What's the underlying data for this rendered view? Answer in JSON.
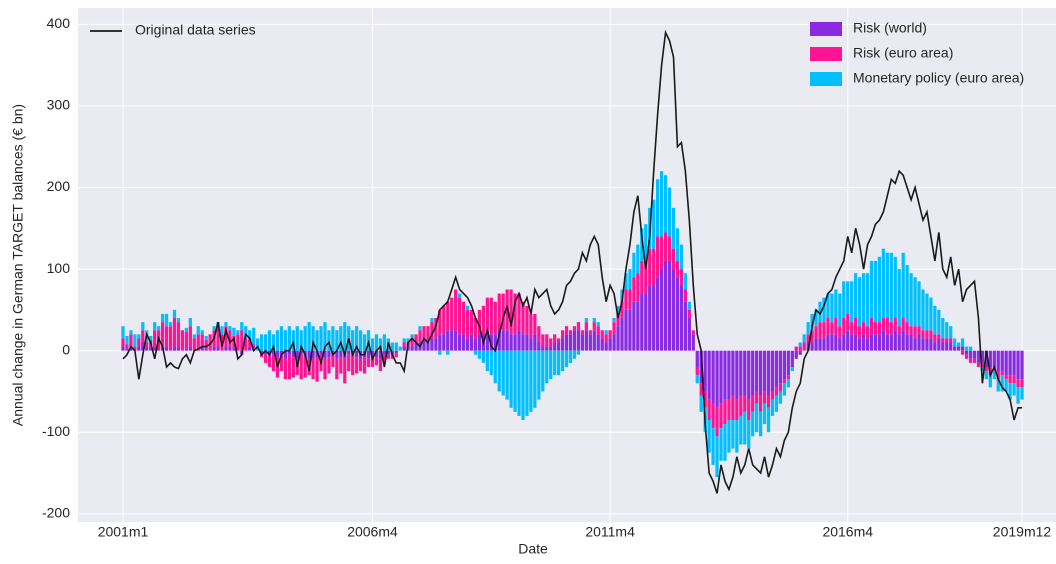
{
  "chart_data": {
    "type": "bar",
    "stacked": true,
    "x_label": "Date",
    "y_label": "Annual change in German TARGET balances (€ bn)",
    "categories": [
      "2001m1",
      null,
      null,
      null,
      null,
      null,
      null,
      null,
      null,
      null,
      null,
      null,
      null,
      null,
      null,
      null,
      null,
      null,
      null,
      null,
      null,
      null,
      null,
      null,
      null,
      null,
      null,
      null,
      null,
      null,
      null,
      null,
      null,
      null,
      null,
      null,
      null,
      null,
      null,
      null,
      null,
      null,
      null,
      null,
      null,
      null,
      null,
      null,
      null,
      null,
      null,
      null,
      null,
      null,
      null,
      null,
      null,
      null,
      null,
      null,
      null,
      null,
      null,
      "2006m4",
      null,
      null,
      null,
      null,
      null,
      null,
      null,
      null,
      null,
      null,
      null,
      null,
      null,
      null,
      null,
      null,
      null,
      null,
      null,
      null,
      null,
      null,
      null,
      null,
      null,
      null,
      null,
      null,
      null,
      null,
      null,
      null,
      null,
      null,
      null,
      null,
      null,
      null,
      null,
      null,
      null,
      null,
      null,
      null,
      null,
      null,
      null,
      null,
      null,
      null,
      null,
      null,
      null,
      null,
      null,
      null,
      null,
      null,
      null,
      "2011m4",
      null,
      null,
      null,
      null,
      null,
      null,
      null,
      null,
      null,
      null,
      null,
      null,
      null,
      null,
      null,
      null,
      null,
      null,
      null,
      null,
      null,
      null,
      null,
      null,
      null,
      null,
      null,
      null,
      null,
      null,
      null,
      null,
      null,
      null,
      null,
      null,
      null,
      null,
      null,
      null,
      null,
      null,
      null,
      null,
      null,
      null,
      null,
      null,
      null,
      null,
      null,
      null,
      null,
      null,
      null,
      null,
      null,
      null,
      null,
      "2016m4",
      null,
      null,
      null,
      null,
      null,
      null,
      null,
      null,
      null,
      null,
      null,
      null,
      null,
      null,
      null,
      null,
      null,
      null,
      null,
      null,
      null,
      null,
      null,
      null,
      null,
      null,
      null,
      null,
      null,
      null,
      null,
      null,
      null,
      null,
      null,
      null,
      null,
      null,
      null,
      null,
      null,
      null,
      null,
      "2019m12"
    ],
    "series": [
      {
        "name": "Risk (world)",
        "type": "bar",
        "color": "#8a2be2",
        "values": [
          5,
          3,
          5,
          0,
          5,
          10,
          5,
          3,
          5,
          0,
          5,
          5,
          0,
          5,
          5,
          0,
          3,
          5,
          0,
          0,
          5,
          3,
          0,
          5,
          5,
          0,
          5,
          5,
          3,
          0,
          -5,
          0,
          5,
          3,
          0,
          -3,
          -5,
          -5,
          -5,
          -8,
          -5,
          -10,
          -5,
          -8,
          -10,
          -5,
          -8,
          -10,
          -10,
          -8,
          -5,
          -10,
          -8,
          -5,
          -10,
          -8,
          -10,
          -5,
          -5,
          -8,
          -10,
          -8,
          -10,
          -5,
          -8,
          -10,
          -5,
          -5,
          -5,
          -3,
          0,
          5,
          5,
          5,
          10,
          10,
          15,
          10,
          15,
          15,
          20,
          20,
          25,
          25,
          25,
          20,
          20,
          15,
          20,
          15,
          20,
          20,
          25,
          20,
          20,
          25,
          25,
          25,
          20,
          20,
          25,
          20,
          20,
          15,
          20,
          10,
          5,
          5,
          5,
          10,
          10,
          15,
          20,
          20,
          25,
          25,
          20,
          25,
          20,
          25,
          20,
          15,
          10,
          15,
          20,
          30,
          40,
          50,
          50,
          60,
          60,
          70,
          70,
          80,
          80,
          90,
          100,
          110,
          110,
          100,
          90,
          80,
          60,
          40,
          20,
          -20,
          -40,
          -50,
          -60,
          -65,
          -70,
          -65,
          -60,
          -60,
          -55,
          -60,
          -55,
          -55,
          -60,
          -55,
          -50,
          -55,
          -50,
          -55,
          -50,
          -45,
          -40,
          -35,
          -30,
          -20,
          -10,
          -5,
          0,
          10,
          10,
          15,
          15,
          15,
          20,
          20,
          20,
          15,
          20,
          25,
          20,
          20,
          15,
          20,
          15,
          20,
          20,
          20,
          25,
          20,
          20,
          25,
          20,
          25,
          20,
          20,
          15,
          20,
          15,
          15,
          15,
          10,
          15,
          10,
          10,
          10,
          5,
          5,
          5,
          -5,
          -10,
          -10,
          -15,
          -15,
          -20,
          -20,
          -20,
          -25,
          -25,
          -30,
          -30,
          -30,
          -35,
          -35
        ]
      },
      {
        "name": "Risk (euro area)",
        "type": "bar",
        "color": "#ff1493",
        "values": [
          10,
          5,
          15,
          5,
          10,
          15,
          5,
          10,
          20,
          25,
          30,
          25,
          30,
          35,
          30,
          25,
          20,
          25,
          15,
          20,
          15,
          10,
          20,
          20,
          25,
          20,
          25,
          20,
          15,
          20,
          25,
          15,
          10,
          5,
          0,
          -5,
          -10,
          -15,
          -20,
          -25,
          -20,
          -25,
          -30,
          -25,
          -20,
          -30,
          -25,
          -20,
          -25,
          -30,
          -20,
          -25,
          -20,
          -15,
          -25,
          -20,
          -30,
          -20,
          -25,
          -20,
          -15,
          -20,
          -10,
          -15,
          -10,
          -15,
          -10,
          -5,
          -5,
          -5,
          0,
          5,
          5,
          10,
          10,
          15,
          15,
          20,
          20,
          25,
          30,
          35,
          35,
          40,
          50,
          45,
          40,
          35,
          30,
          25,
          30,
          35,
          40,
          45,
          40,
          45,
          45,
          50,
          55,
          50,
          45,
          40,
          35,
          30,
          25,
          20,
          15,
          15,
          10,
          10,
          5,
          10,
          10,
          5,
          5,
          10,
          5,
          10,
          5,
          10,
          10,
          10,
          10,
          10,
          15,
          15,
          20,
          25,
          25,
          30,
          35,
          40,
          40,
          45,
          45,
          50,
          40,
          35,
          30,
          25,
          20,
          20,
          15,
          10,
          5,
          -10,
          -15,
          -20,
          -25,
          -30,
          -35,
          -30,
          -30,
          -25,
          -30,
          -25,
          -25,
          -20,
          -25,
          -20,
          -15,
          -20,
          -15,
          -15,
          -10,
          -10,
          -10,
          -5,
          -5,
          0,
          5,
          5,
          10,
          10,
          15,
          15,
          20,
          20,
          20,
          15,
          20,
          15,
          20,
          20,
          15,
          20,
          15,
          15,
          15,
          20,
          15,
          15,
          15,
          20,
          15,
          15,
          10,
          15,
          15,
          10,
          15,
          10,
          10,
          10,
          10,
          10,
          5,
          5,
          5,
          5,
          0,
          0,
          -5,
          -5,
          -5,
          -5,
          -5,
          -5,
          -5,
          -10,
          -5,
          -10,
          -5,
          -5,
          -10,
          -10,
          -10,
          -10
        ]
      },
      {
        "name": "Monetary policy (euro area)",
        "type": "bar",
        "color": "#00bfff",
        "values": [
          15,
          10,
          5,
          15,
          5,
          10,
          15,
          5,
          10,
          5,
          10,
          15,
          5,
          10,
          5,
          0,
          5,
          10,
          5,
          10,
          5,
          5,
          0,
          5,
          5,
          10,
          5,
          5,
          10,
          5,
          10,
          15,
          10,
          20,
          15,
          20,
          20,
          25,
          20,
          25,
          30,
          25,
          30,
          25,
          30,
          25,
          30,
          35,
          30,
          25,
          30,
          35,
          25,
          30,
          25,
          30,
          35,
          30,
          25,
          30,
          25,
          20,
          25,
          15,
          20,
          15,
          20,
          15,
          10,
          10,
          5,
          5,
          5,
          5,
          0,
          5,
          0,
          0,
          5,
          0,
          -5,
          0,
          -5,
          0,
          0,
          5,
          0,
          5,
          0,
          -5,
          -10,
          -15,
          -25,
          -30,
          -40,
          -50,
          -55,
          -60,
          -70,
          -75,
          -80,
          -85,
          -80,
          -75,
          -70,
          -60,
          -50,
          -40,
          -35,
          -30,
          -30,
          -25,
          -20,
          -15,
          -10,
          -5,
          0,
          5,
          0,
          5,
          5,
          0,
          5,
          0,
          5,
          10,
          15,
          20,
          25,
          30,
          35,
          40,
          45,
          50,
          60,
          70,
          80,
          70,
          60,
          50,
          40,
          30,
          20,
          10,
          0,
          -10,
          -20,
          -30,
          -40,
          -45,
          -50,
          -40,
          -45,
          -40,
          -35,
          -40,
          -35,
          -40,
          -35,
          -30,
          -35,
          -30,
          -25,
          -30,
          -20,
          -20,
          -15,
          -15,
          -10,
          -5,
          0,
          5,
          10,
          15,
          20,
          20,
          25,
          30,
          30,
          35,
          35,
          40,
          45,
          40,
          50,
          55,
          60,
          60,
          65,
          70,
          75,
          80,
          85,
          80,
          85,
          75,
          70,
          80,
          70,
          65,
          60,
          55,
          50,
          45,
          40,
          35,
          30,
          25,
          20,
          15,
          10,
          5,
          10,
          5,
          5,
          0,
          0,
          -5,
          -10,
          -15,
          -10,
          -15,
          -20,
          -15,
          -20,
          -15,
          -20,
          -15
        ]
      },
      {
        "name": "Original data series",
        "type": "line",
        "color": "#1a1a1a",
        "values": [
          -10,
          -5,
          5,
          0,
          -35,
          -5,
          20,
          10,
          -10,
          15,
          5,
          -20,
          -15,
          -20,
          -22,
          -10,
          -5,
          -15,
          0,
          2,
          5,
          5,
          8,
          15,
          35,
          5,
          25,
          10,
          15,
          -10,
          -5,
          20,
          15,
          0,
          5,
          -5,
          0,
          -5,
          5,
          -20,
          -5,
          0,
          0,
          10,
          -20,
          5,
          -5,
          -25,
          10,
          0,
          -15,
          5,
          10,
          -5,
          0,
          10,
          -5,
          15,
          -5,
          5,
          -5,
          -5,
          10,
          -10,
          0,
          5,
          -20,
          10,
          -5,
          -15,
          -15,
          -25,
          10,
          15,
          10,
          5,
          15,
          10,
          20,
          30,
          50,
          55,
          60,
          75,
          90,
          75,
          70,
          65,
          55,
          40,
          30,
          10,
          25,
          5,
          0,
          20,
          40,
          55,
          30,
          60,
          70,
          55,
          65,
          45,
          75,
          65,
          70,
          75,
          55,
          45,
          50,
          60,
          80,
          85,
          95,
          100,
          120,
          110,
          130,
          140,
          130,
          90,
          60,
          80,
          70,
          40,
          60,
          100,
          130,
          170,
          190,
          140,
          100,
          140,
          220,
          290,
          350,
          390,
          380,
          360,
          250,
          255,
          220,
          160,
          80,
          20,
          0,
          -90,
          -150,
          -160,
          -175,
          -140,
          -160,
          -170,
          -155,
          -130,
          -150,
          -140,
          -120,
          -140,
          -145,
          -150,
          -130,
          -155,
          -140,
          -120,
          -130,
          -110,
          -100,
          -70,
          -50,
          -40,
          -10,
          0,
          30,
          50,
          45,
          55,
          70,
          75,
          90,
          100,
          110,
          140,
          120,
          150,
          130,
          100,
          130,
          140,
          155,
          160,
          170,
          190,
          210,
          205,
          220,
          215,
          200,
          185,
          200,
          180,
          160,
          170,
          140,
          110,
          145,
          100,
          90,
          115,
          80,
          100,
          60,
          75,
          80,
          85,
          40,
          -40,
          0,
          -30,
          -20,
          -35,
          -45,
          -50,
          -60,
          -85,
          -70,
          -70
        ]
      }
    ],
    "ylim": [
      -210,
      420
    ],
    "yticks": [
      -200,
      -100,
      0,
      100,
      200,
      300,
      400
    ],
    "grid": true,
    "background": "#eaeaf2"
  }
}
